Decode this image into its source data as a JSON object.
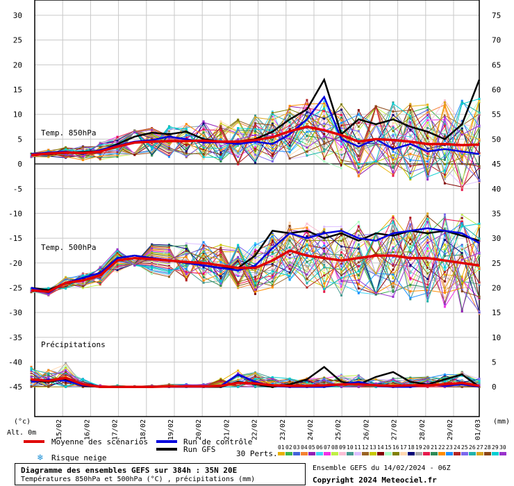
{
  "title": "Diagramme des ensembles GEFS sur 384h : 35N 20E",
  "subtitle": "Températures 850hPa et 500hPa (°C) , précipitations (mm)",
  "run_info": "Ensemble GEFS du 14/02/2024 - 06Z",
  "copyright": "Copyright 2024 Meteociel.fr",
  "left_unit": "(°c)",
  "right_unit": "(mm)",
  "altitude": "Alt. 0m",
  "legend": {
    "mean": "Moyenne des scénarios",
    "control": "Run de contrôle",
    "gfs": "Run GFS",
    "snow": "Risque neige",
    "perts_label": "30 Perts.",
    "perts_ids": [
      "01",
      "02",
      "03",
      "04",
      "05",
      "06",
      "07",
      "08",
      "09",
      "10",
      "11",
      "12",
      "13",
      "14",
      "15",
      "16",
      "17",
      "18",
      "19",
      "20",
      "21",
      "22",
      "23",
      "24",
      "25",
      "26",
      "27",
      "28",
      "29",
      "30"
    ],
    "perts_colors": [
      "#e8b000",
      "#3cb44b",
      "#4363d8",
      "#f58231",
      "#911eb4",
      "#42d4f4",
      "#f032e6",
      "#bfef45",
      "#fabed4",
      "#469990",
      "#dcbeff",
      "#9a6324",
      "#c8c800",
      "#800000",
      "#aaffc3",
      "#808000",
      "#ffd8b1",
      "#000075",
      "#a9a9a9",
      "#e6194b",
      "#2e8b57",
      "#ff8c00",
      "#1e90ff",
      "#b22222",
      "#7b68ee",
      "#20b2aa",
      "#daa520",
      "#8b4513",
      "#00ced1",
      "#9932cc"
    ]
  },
  "chart_data": {
    "type": "line",
    "x_labels": [
      "15/02",
      "16/02",
      "17/02",
      "18/02",
      "19/02",
      "20/02",
      "21/02",
      "22/02",
      "23/02",
      "24/02",
      "25/02",
      "26/02",
      "27/02",
      "28/02",
      "29/02",
      "01/03"
    ],
    "left_axis_ticks": [
      30,
      25,
      20,
      15,
      10,
      5,
      0,
      -5,
      -10,
      -15,
      -20,
      -25,
      -30,
      -35,
      -40,
      -45
    ],
    "right_axis_ticks": [
      75,
      70,
      65,
      60,
      55,
      50,
      45,
      40,
      35,
      30,
      25,
      20,
      15,
      10,
      5,
      0
    ],
    "x_range_hours": [
      0,
      384
    ],
    "panels": [
      {
        "label": "Temp. 850hPa",
        "mean": [
          1.8,
          2.1,
          2.3,
          2.2,
          2.5,
          3.5,
          4.3,
          4.5,
          4.6,
          4.6,
          4.7,
          4.5,
          4.5,
          4.8,
          5.4,
          6.6,
          7.5,
          6.8,
          5.8,
          4.5,
          5.0,
          4.8,
          4.5,
          4.0,
          4.0,
          3.8,
          3.9
        ],
        "control": [
          2.0,
          2.3,
          2.5,
          2.0,
          2.8,
          3.7,
          4.5,
          4.8,
          5.5,
          5.0,
          4.3,
          4.4,
          4.0,
          4.5,
          4.0,
          6.0,
          9.0,
          13.5,
          5.0,
          3.5,
          5.0,
          3.0,
          4.0,
          2.5,
          3.0,
          2.5,
          2.0
        ],
        "gfs": [
          1.9,
          2.0,
          2.2,
          2.4,
          2.6,
          4.0,
          5.5,
          6.3,
          6.0,
          6.5,
          5.0,
          4.5,
          4.5,
          5.0,
          6.5,
          9.0,
          11.0,
          17.0,
          6.0,
          9.0,
          8.0,
          9.0,
          7.5,
          6.5,
          5.0,
          8.0,
          17.0
        ]
      },
      {
        "label": "Temp. 500hPa",
        "mean": [
          -25.5,
          -25.8,
          -24.0,
          -23.5,
          -22.5,
          -19.5,
          -19.0,
          -19.2,
          -19.5,
          -19.8,
          -20.0,
          -20.5,
          -21.0,
          -21.0,
          -19.5,
          -17.5,
          -18.5,
          -19.0,
          -19.5,
          -19.0,
          -18.5,
          -18.5,
          -19.0,
          -19.0,
          -19.5,
          -20.0,
          -20.5
        ],
        "control": [
          -25.0,
          -26.0,
          -24.0,
          -23.0,
          -22.0,
          -19.0,
          -18.5,
          -19.0,
          -19.5,
          -20.0,
          -20.5,
          -21.0,
          -21.5,
          -20.5,
          -17.0,
          -14.0,
          -15.0,
          -14.0,
          -13.5,
          -15.0,
          -15.5,
          -14.0,
          -13.5,
          -13.0,
          -13.5,
          -14.0,
          -16.0
        ],
        "gfs": [
          -25.0,
          -25.5,
          -24.0,
          -23.0,
          -22.0,
          -19.0,
          -18.5,
          -19.0,
          -19.5,
          -20.0,
          -20.5,
          -21.0,
          -21.0,
          -18.5,
          -13.5,
          -14.0,
          -13.5,
          -15.0,
          -14.0,
          -15.5,
          -14.0,
          -14.5,
          -13.5,
          -14.0,
          -13.5,
          -14.5,
          -15.5
        ]
      },
      {
        "label": "Précipitations",
        "mean": [
          1.5,
          1.2,
          1.8,
          0.5,
          0.0,
          0.0,
          0.0,
          0.0,
          0.1,
          0.1,
          0.1,
          0.2,
          0.8,
          0.7,
          0.3,
          0.2,
          0.2,
          0.3,
          0.5,
          0.5,
          0.3,
          0.2,
          0.3,
          0.3,
          0.5,
          0.8,
          0.2
        ],
        "control": [
          1.0,
          1.5,
          1.2,
          0.3,
          0.0,
          0.0,
          0.0,
          0.0,
          0.0,
          0.0,
          0.0,
          0.2,
          2.5,
          1.0,
          0.2,
          0.0,
          0.0,
          0.0,
          0.5,
          1.0,
          0.2,
          0.0,
          0.0,
          0.5,
          0.2,
          0.5,
          0.0
        ],
        "gfs": [
          1.2,
          1.0,
          1.5,
          0.2,
          0.0,
          0.0,
          0.0,
          0.0,
          0.0,
          0.0,
          0.0,
          0.0,
          1.0,
          0.5,
          0.0,
          0.5,
          1.5,
          4.0,
          1.0,
          0.5,
          2.0,
          3.0,
          1.0,
          0.5,
          1.5,
          2.5,
          0.0
        ]
      }
    ]
  }
}
